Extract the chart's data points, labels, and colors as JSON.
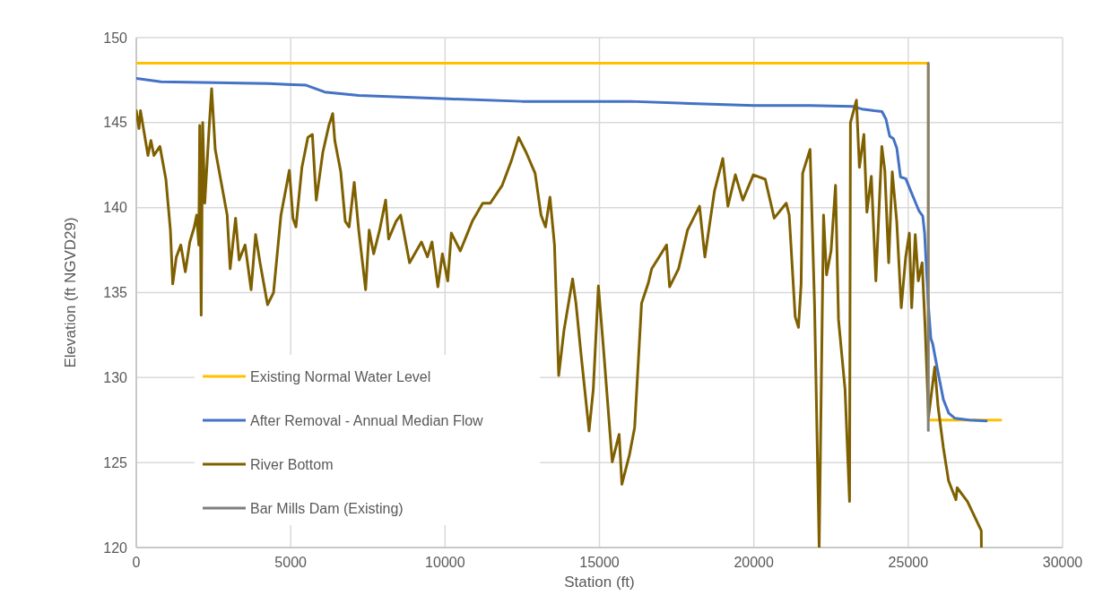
{
  "chart_data": {
    "type": "line",
    "xlabel": "Station (ft)",
    "ylabel": "Elevation (ft NGVD29)",
    "xlim": [
      0,
      30000
    ],
    "xticks": [
      0,
      5000,
      10000,
      15000,
      20000,
      25000,
      30000
    ],
    "ylim": [
      120,
      150
    ],
    "yticks": [
      120,
      125,
      130,
      135,
      140,
      145,
      150
    ],
    "grid": true,
    "legend": "bottom left",
    "marker": "none",
    "line_style": "solid",
    "series": [
      {
        "name": "Existing Normal Water Level",
        "color": "#ffc000",
        "x": [
          0,
          25650,
          25650,
          28000
        ],
        "values": [
          148.5,
          148.5,
          127.5,
          127.5
        ]
      },
      {
        "name": "After Removal - Annual Median Flow",
        "color": "#4472c4",
        "x": [
          0,
          800,
          4300,
          4900,
          5500,
          6100,
          7200,
          10100,
          12500,
          16000,
          20000,
          21800,
          23200,
          23500,
          23900,
          24150,
          24280,
          24400,
          24520,
          24630,
          24750,
          24920,
          25100,
          25350,
          25470,
          25530,
          25590,
          25650,
          25733,
          25791,
          25966,
          26140,
          26314,
          26517,
          26982,
          27534
        ],
        "values": [
          147.6,
          147.4,
          147.3,
          147.25,
          147.2,
          146.8,
          146.6,
          146.4,
          146.25,
          146.25,
          146.0,
          146.0,
          145.95,
          145.8,
          145.7,
          145.65,
          145.2,
          144.2,
          144.05,
          143.5,
          141.8,
          141.7,
          140.9,
          139.8,
          139.5,
          138.5,
          136.4,
          134.3,
          132.3,
          132.0,
          130.3,
          128.7,
          127.9,
          127.6,
          127.5,
          127.45
        ]
      },
      {
        "name": "River Bottom",
        "color": "#7f6000",
        "x": [
          0,
          87,
          136,
          378,
          474,
          571,
          765,
          958,
          1104,
          1180,
          1297,
          1442,
          1588,
          1733,
          1878,
          1955,
          2024,
          2053,
          2101,
          2150,
          2217,
          2363,
          2440,
          2556,
          2750,
          2943,
          3040,
          3215,
          3331,
          3524,
          3718,
          3863,
          4008,
          4250,
          4444,
          4685,
          4830,
          4957,
          5073,
          5170,
          5364,
          5557,
          5702,
          5829,
          6041,
          6236,
          6361,
          6428,
          6622,
          6767,
          6893,
          7058,
          7203,
          7427,
          7543,
          7688,
          7881,
          8075,
          8172,
          8415,
          8560,
          8850,
          9236,
          9430,
          9576,
          9768,
          9913,
          10087,
          10203,
          10494,
          10883,
          11220,
          11464,
          11850,
          12141,
          12383,
          12625,
          12916,
          13108,
          13253,
          13398,
          13544,
          13680,
          13850,
          14130,
          14240,
          14406,
          14664,
          14800,
          14966,
          15130,
          15414,
          15637,
          15727,
          15971,
          16140,
          16364,
          16585,
          16692,
          17174,
          17272,
          17563,
          17853,
          18240,
          18414,
          18724,
          18995,
          19160,
          19402,
          19643,
          19983,
          20369,
          20660,
          21049,
          21145,
          21339,
          21446,
          21531,
          21580,
          21821,
          21966,
          22116,
          22257,
          22355,
          22500,
          22646,
          22742,
          22954,
          23100,
          23129,
          23322,
          23419,
          23564,
          23661,
          23806,
          23952,
          24145,
          24242,
          24367,
          24483,
          24628,
          24774,
          24919,
          25035,
          25112,
          25228,
          25326,
          25451,
          25549,
          25658,
          25858,
          25966,
          26140,
          26306,
          26546,
          26584,
          26918,
          27366,
          27370
        ],
        "values": [
          145.7,
          144.65,
          145.7,
          143.07,
          143.95,
          143.07,
          143.6,
          141.67,
          138.68,
          135.51,
          137.1,
          137.8,
          136.22,
          137.98,
          138.86,
          139.56,
          137.8,
          144.83,
          133.67,
          145.0,
          140.26,
          144.83,
          147.0,
          143.42,
          141.49,
          139.56,
          136.4,
          139.38,
          136.92,
          137.8,
          135.17,
          138.41,
          136.75,
          134.29,
          134.99,
          139.56,
          140.96,
          142.19,
          139.38,
          138.86,
          142.37,
          144.13,
          144.3,
          140.44,
          143.25,
          144.83,
          145.53,
          143.95,
          142.1,
          139.2,
          138.86,
          141.49,
          138.68,
          135.17,
          138.68,
          137.28,
          138.68,
          140.44,
          138.15,
          139.2,
          139.56,
          136.75,
          137.98,
          137.1,
          137.98,
          135.34,
          137.28,
          135.69,
          138.5,
          137.45,
          139.2,
          140.26,
          140.26,
          141.31,
          142.72,
          144.13,
          143.25,
          142.02,
          139.56,
          138.86,
          140.61,
          137.8,
          130.12,
          132.76,
          135.8,
          134.36,
          131.33,
          126.86,
          129.3,
          135.39,
          131.73,
          125.04,
          126.66,
          123.72,
          125.45,
          127.07,
          134.37,
          135.58,
          136.4,
          137.8,
          135.34,
          136.4,
          138.68,
          140.08,
          137.1,
          140.96,
          142.89,
          140.08,
          141.93,
          140.44,
          141.93,
          141.67,
          139.38,
          140.26,
          139.56,
          133.58,
          132.95,
          135.51,
          142.02,
          143.42,
          134.29,
          120,
          139.56,
          136.04,
          137.45,
          141.31,
          133.41,
          129.3,
          122.71,
          145.0,
          146.32,
          142.37,
          144.3,
          139.73,
          141.84,
          135.69,
          143.6,
          142.19,
          136.75,
          142.1,
          139.2,
          134.11,
          137.1,
          138.5,
          134.11,
          138.41,
          135.69,
          136.75,
          132.88,
          127.68,
          130.62,
          128.29,
          125.85,
          123.93,
          122.81,
          123.52,
          122.71,
          120.99,
          120
        ]
      },
      {
        "name": "Bar Mills Dam (Existing)",
        "color": "#808080",
        "x": [
          25650,
          25650
        ],
        "values": [
          148.5,
          126.9
        ]
      }
    ]
  }
}
